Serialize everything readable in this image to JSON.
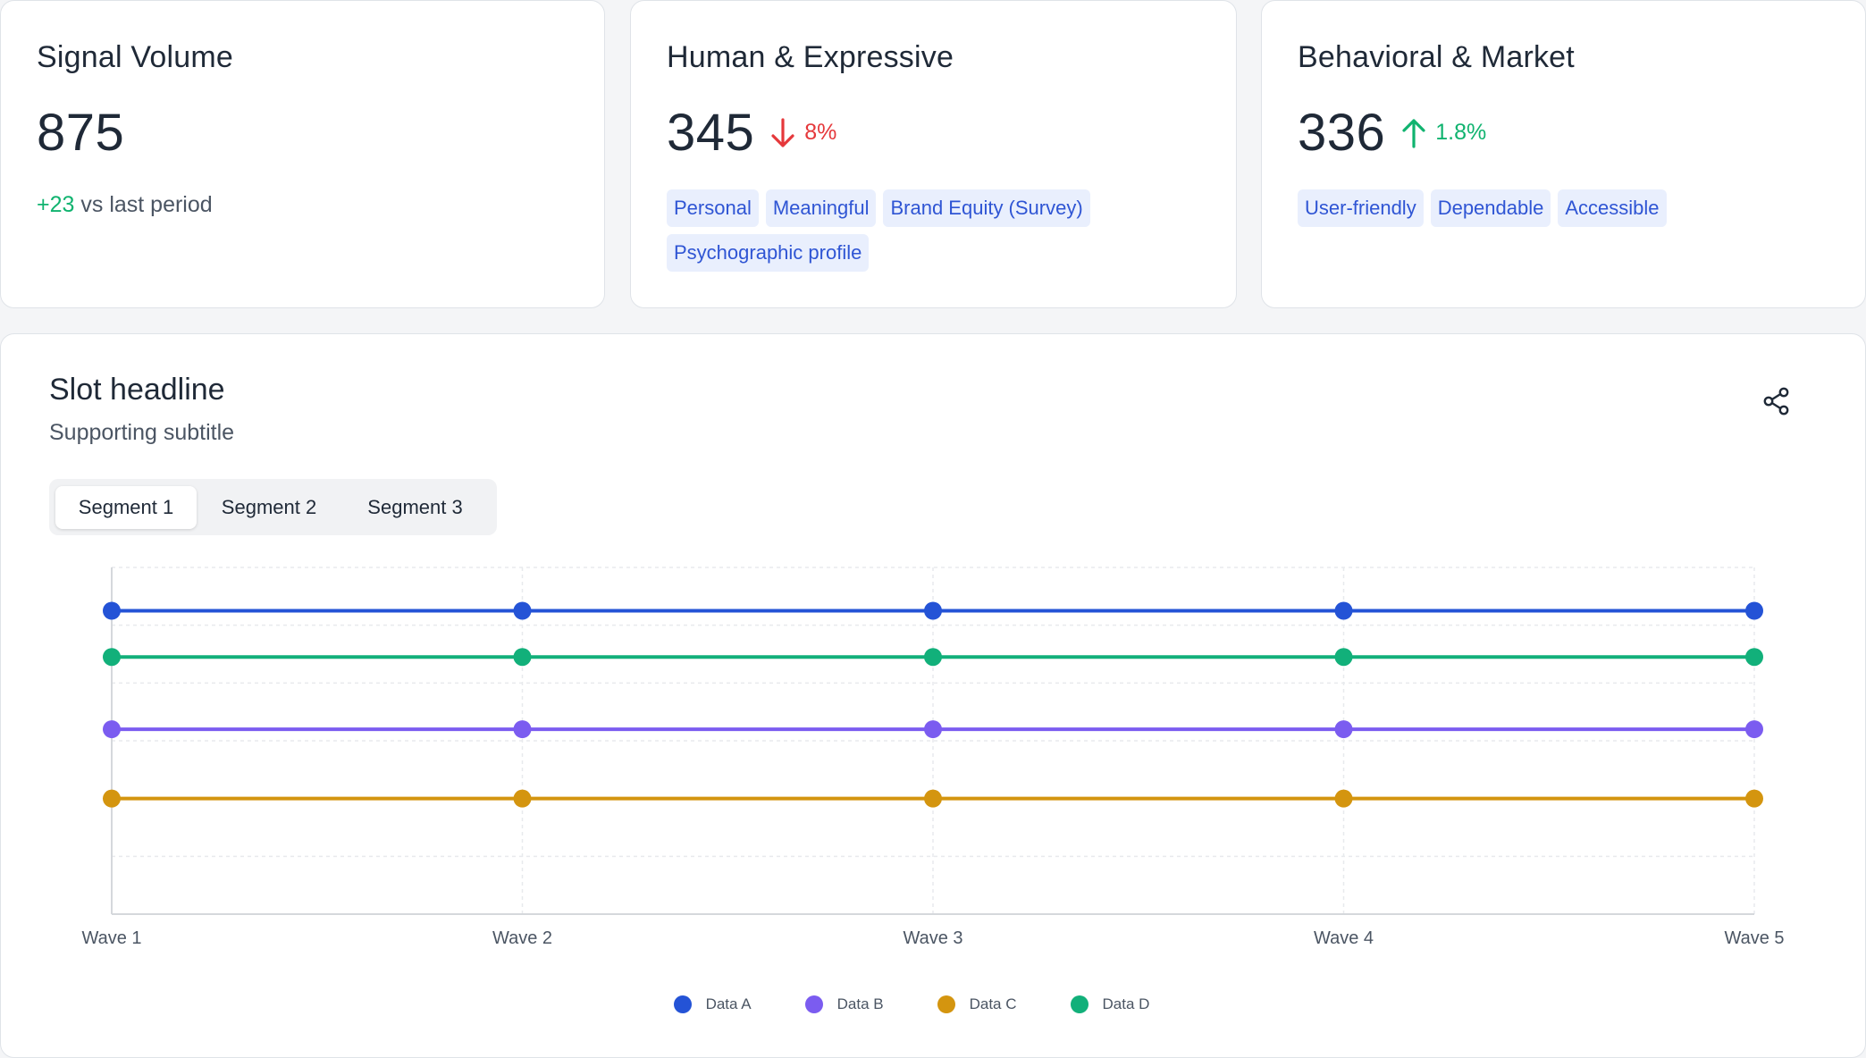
{
  "kpis": [
    {
      "title": "Signal Volume",
      "value": "875",
      "delta_value": "+23",
      "delta_text": "vs last period"
    },
    {
      "title": "Human & Expressive",
      "value": "345",
      "trend": "down",
      "trend_value": "8%",
      "tags": [
        "Personal",
        "Meaningful",
        "Brand Equity (Survey)",
        "Psychographic profile"
      ]
    },
    {
      "title": "Behavioral & Market",
      "value": "336",
      "trend": "up",
      "trend_value": "1.8%",
      "tags": [
        "User-friendly",
        "Dependable",
        "Accessible"
      ]
    }
  ],
  "chart_card": {
    "title": "Slot headline",
    "subtitle": "Supporting subtitle",
    "share_icon": "share-icon",
    "segments": [
      "Segment 1",
      "Segment 2",
      "Segment 3"
    ],
    "active_segment": "Segment 1"
  },
  "colors": {
    "accent_up": "#10b36f",
    "accent_down": "#e5383b",
    "tag_bg": "#e9effd",
    "tag_text": "#2f55d4"
  },
  "chart_data": {
    "type": "line",
    "x": [
      "Wave 1",
      "Wave 2",
      "Wave 3",
      "Wave 4",
      "Wave 5"
    ],
    "ylim": [
      0,
      6
    ],
    "grid": true,
    "legend_position": "bottom",
    "series": [
      {
        "name": "Data A",
        "color": "#2453d6",
        "values": [
          5.25,
          5.25,
          5.25,
          5.25,
          5.25
        ]
      },
      {
        "name": "Data B",
        "color": "#7b5cf0",
        "values": [
          3.2,
          3.2,
          3.2,
          3.2,
          3.2
        ]
      },
      {
        "name": "Data C",
        "color": "#d4950f",
        "values": [
          2.0,
          2.0,
          2.0,
          2.0,
          2.0
        ]
      },
      {
        "name": "Data D",
        "color": "#12b07a",
        "values": [
          4.45,
          4.45,
          4.45,
          4.45,
          4.45
        ]
      }
    ]
  }
}
